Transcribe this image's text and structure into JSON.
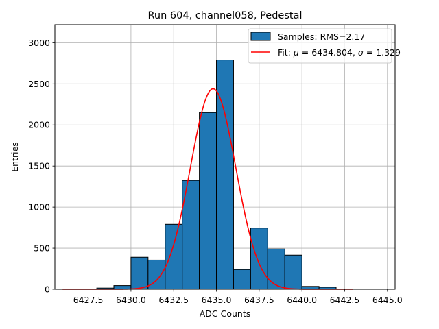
{
  "chart_data": {
    "type": "bar",
    "title": "Run 604, channel058, Pedestal",
    "xlabel": "ADC Counts",
    "ylabel": "Entries",
    "xlim": [
      6425.55,
      6445.45
    ],
    "ylim": [
      0,
      3220
    ],
    "grid": true,
    "legend_placement": "top-right",
    "x_ticks": [
      6427.5,
      6430.0,
      6432.5,
      6435.0,
      6437.5,
      6440.0,
      6442.5,
      6445.0
    ],
    "x_tick_labels": [
      "6427.5",
      "6430.0",
      "6432.5",
      "6435.0",
      "6437.5",
      "6440.0",
      "6442.5",
      "6445.0"
    ],
    "y_ticks": [
      0,
      500,
      1000,
      1500,
      2000,
      2500,
      3000
    ],
    "y_tick_labels": [
      "0",
      "500",
      "1000",
      "1500",
      "2000",
      "2500",
      "3000"
    ],
    "bins": [
      {
        "x0": 6426.0,
        "x1": 6427.0,
        "value": 0
      },
      {
        "x0": 6427.0,
        "x1": 6428.0,
        "value": 0
      },
      {
        "x0": 6428.0,
        "x1": 6429.0,
        "value": 15
      },
      {
        "x0": 6429.0,
        "x1": 6430.0,
        "value": 45
      },
      {
        "x0": 6430.0,
        "x1": 6431.0,
        "value": 390
      },
      {
        "x0": 6431.0,
        "x1": 6432.0,
        "value": 355
      },
      {
        "x0": 6432.0,
        "x1": 6433.0,
        "value": 790
      },
      {
        "x0": 6433.0,
        "x1": 6434.0,
        "value": 1325
      },
      {
        "x0": 6434.0,
        "x1": 6435.0,
        "value": 2150
      },
      {
        "x0": 6435.0,
        "x1": 6436.0,
        "value": 2790
      },
      {
        "x0": 6436.0,
        "x1": 6437.0,
        "value": 240
      },
      {
        "x0": 6437.0,
        "x1": 6438.0,
        "value": 745
      },
      {
        "x0": 6438.0,
        "x1": 6439.0,
        "value": 490
      },
      {
        "x0": 6439.0,
        "x1": 6440.0,
        "value": 415
      },
      {
        "x0": 6440.0,
        "x1": 6441.0,
        "value": 35
      },
      {
        "x0": 6441.0,
        "x1": 6442.0,
        "value": 25
      },
      {
        "x0": 6442.0,
        "x1": 6443.0,
        "value": 0
      }
    ],
    "fit": {
      "mu": 6434.804,
      "sigma": 1.329,
      "amplitude": 2440,
      "x_range": [
        6426.0,
        6443.0
      ]
    },
    "series": [
      {
        "name": "Samples: RMS=2.17",
        "kind": "histogram",
        "color": "#1f77b4",
        "edgecolor": "#000000"
      },
      {
        "name_prefix": "Fit: ",
        "name_mu_sym": "μ",
        "name_mu_val": " = 6434.804, ",
        "name_sigma_sym": "σ",
        "name_sigma_val": " = 1.329",
        "kind": "line",
        "color": "#ff0000"
      }
    ],
    "colors": {
      "grid": "#b0b0b0",
      "axes": "#000000"
    }
  }
}
